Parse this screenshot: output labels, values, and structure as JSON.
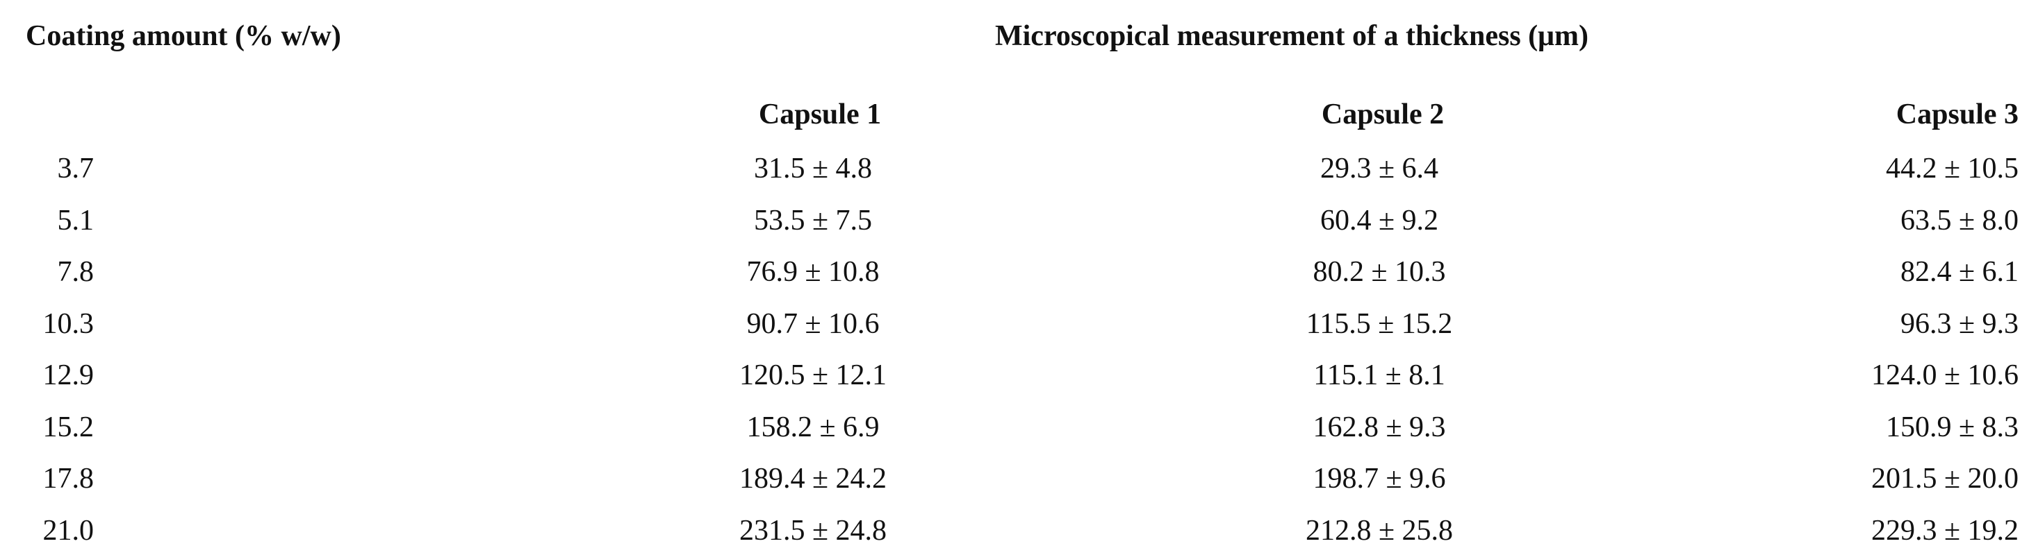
{
  "header": {
    "coating": "Coating amount (% w/w)",
    "measurement": "Microscopical measurement of a thickness (μm)",
    "capsules": [
      "Capsule 1",
      "Capsule 2",
      "Capsule 3"
    ]
  },
  "table": {
    "rows": [
      [
        "3.7",
        "31.5 ± 4.8",
        "29.3 ± 6.4",
        "44.2 ± 10.5"
      ],
      [
        "5.1",
        "53.5 ± 7.5",
        "60.4 ± 9.2",
        "63.5 ± 8.0"
      ],
      [
        "7.8",
        "76.9 ± 10.8",
        "80.2 ± 10.3",
        "82.4 ± 6.1"
      ],
      [
        "10.3",
        "90.7 ± 10.6",
        "115.5 ± 15.2",
        "96.3 ± 9.3"
      ],
      [
        "12.9",
        "120.5 ± 12.1",
        "115.1 ± 8.1",
        "124.0 ± 10.6"
      ],
      [
        "15.2",
        "158.2 ± 6.9",
        "162.8 ± 9.3",
        "150.9 ± 8.3"
      ],
      [
        "17.8",
        "189.4 ± 24.2",
        "198.7 ± 9.6",
        "201.5 ± 20.0"
      ],
      [
        "21.0",
        "231.5 ± 24.8",
        "212.8 ± 25.8",
        "229.3 ± 19.2"
      ]
    ]
  }
}
